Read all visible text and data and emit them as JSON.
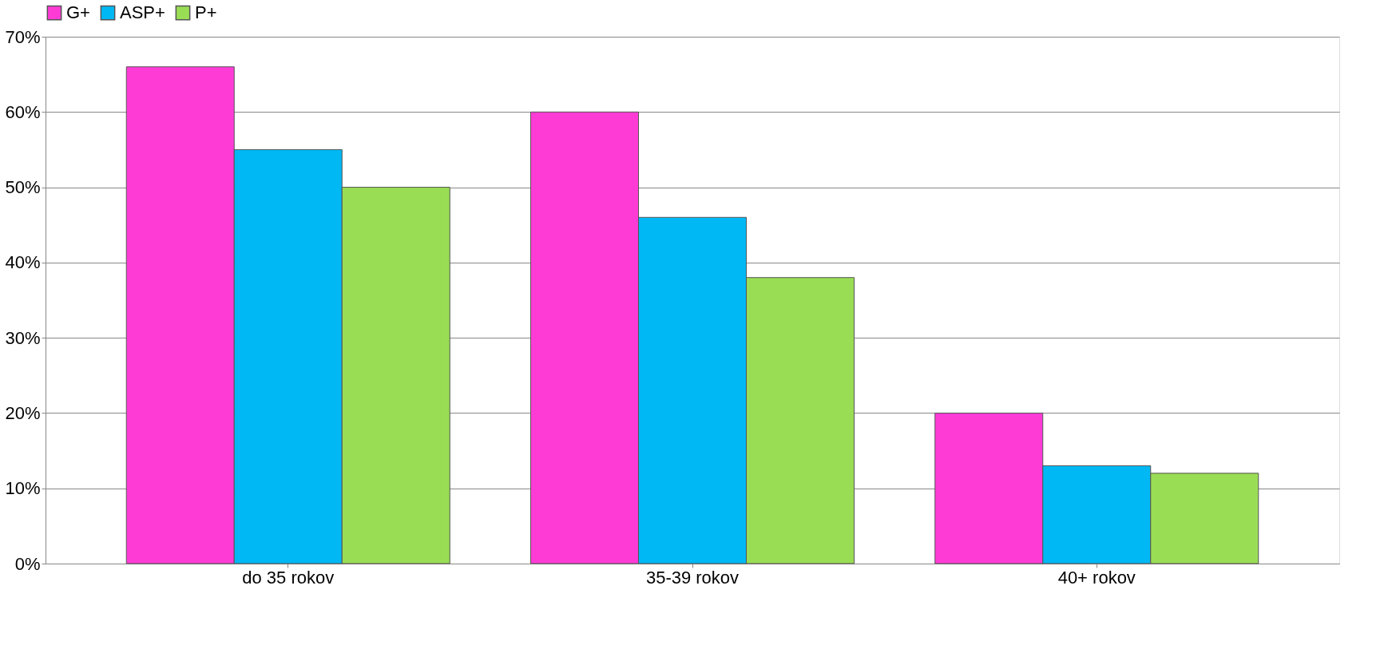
{
  "chart_data": {
    "type": "bar",
    "categories": [
      "do 35 rokov",
      "35-39 rokov",
      "40+ rokov"
    ],
    "series": [
      {
        "name": "G+",
        "color": "#ff3bd6",
        "values": [
          66,
          60,
          20
        ]
      },
      {
        "name": "ASP+",
        "color": "#00b8f4",
        "values": [
          55,
          46,
          13
        ]
      },
      {
        "name": "P+",
        "color": "#99dd55",
        "values": [
          50,
          38,
          12
        ]
      }
    ],
    "ylim": [
      0,
      70
    ],
    "yticks": [
      {
        "value": 0,
        "label": "0%"
      },
      {
        "value": 10,
        "label": "10%"
      },
      {
        "value": 20,
        "label": "20%"
      },
      {
        "value": 30,
        "label": "30%"
      },
      {
        "value": 40,
        "label": "40%"
      },
      {
        "value": 50,
        "label": "50%"
      },
      {
        "value": 60,
        "label": "60%"
      },
      {
        "value": 70,
        "label": "70%"
      }
    ],
    "grid": "y",
    "legend": "top"
  }
}
